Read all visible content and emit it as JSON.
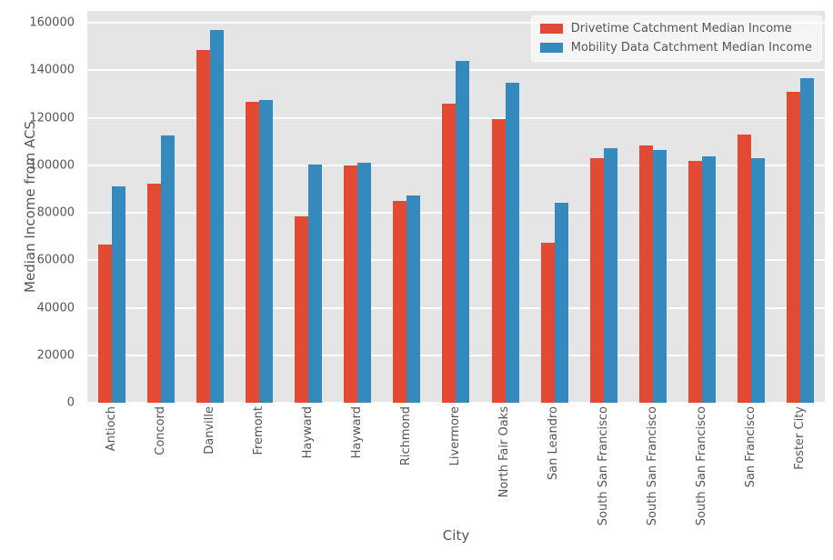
{
  "figure": {
    "background": "#ffffff",
    "plot_background": "#e5e5e5",
    "grid_color": "#ffffff",
    "text_color": "#555555"
  },
  "chart_data": {
    "type": "bar",
    "title": "",
    "xlabel": "City",
    "ylabel": "Median Income from ACS",
    "ylim": [
      0,
      165000
    ],
    "yticks": [
      0,
      20000,
      40000,
      60000,
      80000,
      100000,
      120000,
      140000,
      160000
    ],
    "grid": true,
    "legend_position": "upper right",
    "categories": [
      "Antioch",
      "Concord",
      "Danville",
      "Fremont",
      "Hayward",
      "Hayward",
      "Richmond",
      "Livermore",
      "North Fair Oaks",
      "San Leandro",
      "South San Francisco",
      "South San Francisco",
      "South San Francisco",
      "San Francisco",
      "Foster City"
    ],
    "series": [
      {
        "name": "Drivetime Catchment Median Income",
        "color": "#E24A33",
        "values": [
          66500,
          92100,
          148400,
          126700,
          78600,
          99900,
          84900,
          125800,
          119300,
          67500,
          103000,
          108500,
          101900,
          112800,
          130900
        ]
      },
      {
        "name": "Mobility Data Catchment Median Income",
        "color": "#348ABD",
        "values": [
          91000,
          112700,
          157000,
          127400,
          100400,
          101000,
          87400,
          143900,
          134900,
          84400,
          107200,
          106500,
          103900,
          102800,
          136800
        ]
      }
    ]
  }
}
